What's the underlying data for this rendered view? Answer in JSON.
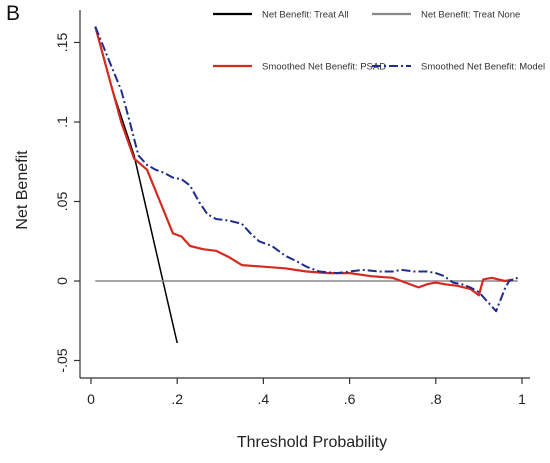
{
  "panel_label": "B",
  "chart_data": {
    "type": "line",
    "xlabel": "Threshold Probability",
    "ylabel": "Net Benefit",
    "xlim": [
      0,
      1
    ],
    "ylim": [
      -0.06,
      0.165
    ],
    "x_ticks": [
      0,
      0.2,
      0.4,
      0.6,
      0.8,
      1
    ],
    "x_tick_labels": [
      "0",
      ".2",
      ".4",
      ".6",
      ".8",
      "1"
    ],
    "y_ticks": [
      -0.05,
      0,
      0.05,
      0.1,
      0.15
    ],
    "y_tick_labels": [
      "-.05",
      "0",
      ".05",
      ".1",
      ".15"
    ],
    "grid": false,
    "legend_position": "top",
    "series": [
      {
        "name": "Net Benefit: Treat All",
        "color": "#000000",
        "style": "solid",
        "points": [
          [
            0.01,
            0.16
          ],
          [
            0.05,
            0.12
          ],
          [
            0.1,
            0.079
          ],
          [
            0.15,
            0.02
          ],
          [
            0.2,
            -0.039
          ]
        ]
      },
      {
        "name": "Net Benefit: Treat None",
        "color": "#888888",
        "style": "solid",
        "points": [
          [
            0.01,
            0.0
          ],
          [
            0.99,
            0.0
          ]
        ]
      },
      {
        "name": "Smoothed Net Benefit: PSAD",
        "color": "#d42a20",
        "style": "solid",
        "points": [
          [
            0.01,
            0.16
          ],
          [
            0.04,
            0.13
          ],
          [
            0.07,
            0.1
          ],
          [
            0.1,
            0.077
          ],
          [
            0.13,
            0.07
          ],
          [
            0.16,
            0.05
          ],
          [
            0.19,
            0.03
          ],
          [
            0.21,
            0.028
          ],
          [
            0.23,
            0.022
          ],
          [
            0.26,
            0.02
          ],
          [
            0.29,
            0.019
          ],
          [
            0.32,
            0.015
          ],
          [
            0.35,
            0.01
          ],
          [
            0.4,
            0.009
          ],
          [
            0.45,
            0.008
          ],
          [
            0.5,
            0.006
          ],
          [
            0.55,
            0.005
          ],
          [
            0.6,
            0.005
          ],
          [
            0.65,
            0.003
          ],
          [
            0.7,
            0.002
          ],
          [
            0.73,
            -0.001
          ],
          [
            0.76,
            -0.004
          ],
          [
            0.78,
            -0.002
          ],
          [
            0.8,
            -0.001
          ],
          [
            0.82,
            -0.002
          ],
          [
            0.85,
            -0.003
          ],
          [
            0.88,
            -0.005
          ],
          [
            0.9,
            -0.009
          ],
          [
            0.91,
            0.001
          ],
          [
            0.93,
            0.002
          ],
          [
            0.96,
            0.0
          ],
          [
            0.98,
            0.001
          ]
        ]
      },
      {
        "name": "Smoothed Net Benefit: Model",
        "color": "#1f2d8c",
        "style": "dashdot",
        "points": [
          [
            0.01,
            0.16
          ],
          [
            0.04,
            0.14
          ],
          [
            0.07,
            0.12
          ],
          [
            0.09,
            0.1
          ],
          [
            0.11,
            0.079
          ],
          [
            0.13,
            0.073
          ],
          [
            0.15,
            0.07
          ],
          [
            0.17,
            0.068
          ],
          [
            0.19,
            0.065
          ],
          [
            0.21,
            0.064
          ],
          [
            0.23,
            0.06
          ],
          [
            0.25,
            0.05
          ],
          [
            0.27,
            0.042
          ],
          [
            0.29,
            0.039
          ],
          [
            0.32,
            0.038
          ],
          [
            0.35,
            0.036
          ],
          [
            0.37,
            0.03
          ],
          [
            0.39,
            0.025
          ],
          [
            0.42,
            0.022
          ],
          [
            0.45,
            0.016
          ],
          [
            0.48,
            0.012
          ],
          [
            0.5,
            0.009
          ],
          [
            0.53,
            0.006
          ],
          [
            0.57,
            0.005
          ],
          [
            0.6,
            0.006
          ],
          [
            0.63,
            0.007
          ],
          [
            0.67,
            0.006
          ],
          [
            0.7,
            0.006
          ],
          [
            0.72,
            0.007
          ],
          [
            0.75,
            0.006
          ],
          [
            0.78,
            0.006
          ],
          [
            0.8,
            0.005
          ],
          [
            0.82,
            0.003
          ],
          [
            0.84,
            -0.001
          ],
          [
            0.86,
            -0.002
          ],
          [
            0.88,
            -0.004
          ],
          [
            0.9,
            -0.007
          ],
          [
            0.92,
            -0.013
          ],
          [
            0.94,
            -0.019
          ],
          [
            0.96,
            -0.005
          ],
          [
            0.97,
            0.0
          ],
          [
            0.99,
            0.002
          ]
        ]
      }
    ]
  }
}
